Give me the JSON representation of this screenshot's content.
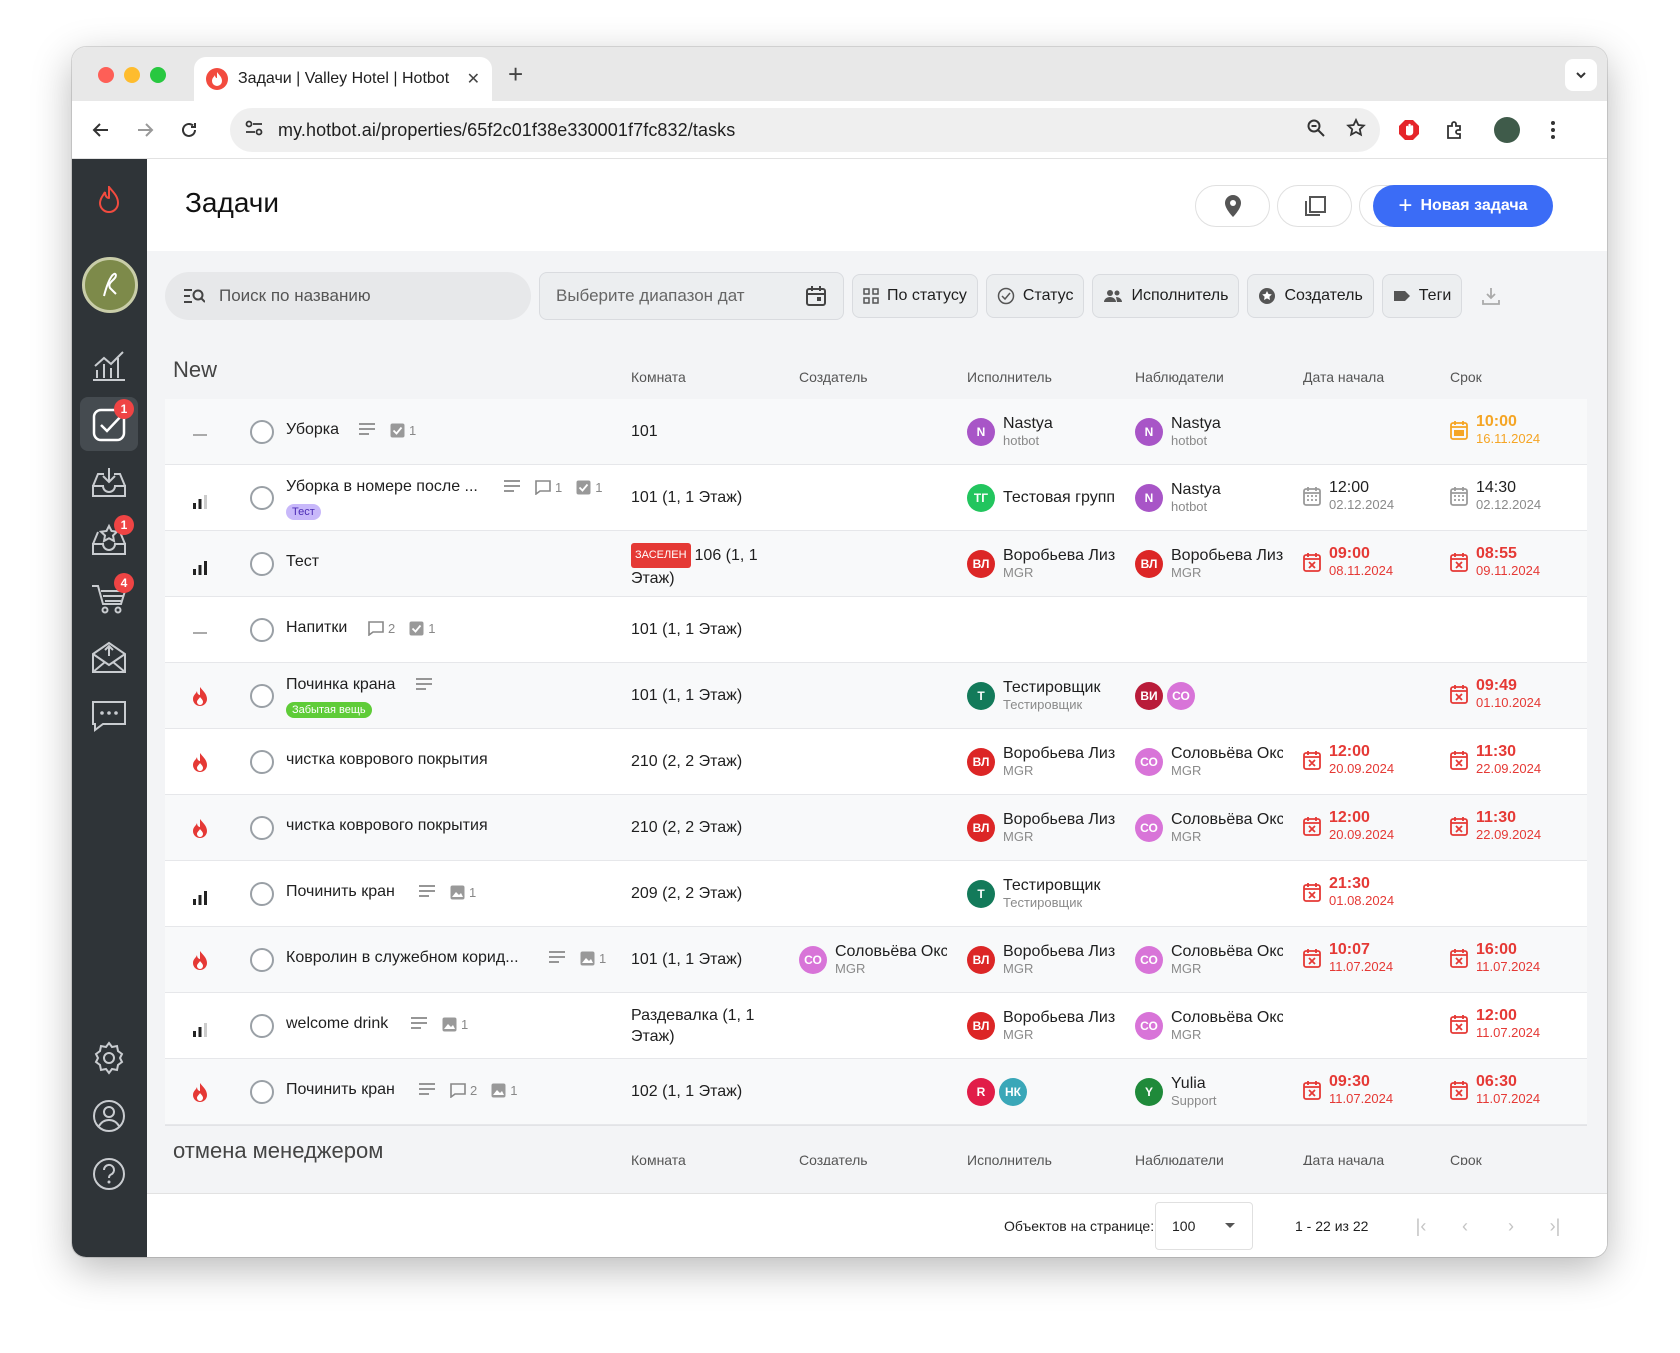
{
  "browser": {
    "tab_title": "Задачи | Valley Hotel | Hotbot",
    "url": "my.hotbot.ai/properties/65f2c01f38e330001f7fc832/tasks"
  },
  "sidebar": {
    "badges": {
      "tasks": "1",
      "reviews": "1",
      "shop": "4"
    }
  },
  "header": {
    "title": "Задачи",
    "new_task_label": "Новая задача"
  },
  "filters": {
    "search_placeholder": "Поиск по названию",
    "date_placeholder": "Выберите диапазон дат",
    "by_status": "По статусу",
    "status": "Статус",
    "assignee": "Исполнитель",
    "creator": "Создатель",
    "tags": "Теги"
  },
  "columns": {
    "room": "Комната",
    "creator": "Создатель",
    "assignee": "Исполнитель",
    "watchers": "Наблюдатели",
    "start_date": "Дата начала",
    "deadline": "Срок"
  },
  "groups": [
    {
      "title": "New"
    },
    {
      "title": "отмена менеджером"
    }
  ],
  "tasks": [
    {
      "priority": "none",
      "name": "Уборка",
      "checks": "1",
      "room": "101",
      "assignee": {
        "initials": "N",
        "name": "Nastya",
        "role": "hotbot",
        "color": "#a855c7"
      },
      "watcher": {
        "initials": "N",
        "name": "Nastya",
        "role": "hotbot",
        "color": "#a855c7"
      },
      "deadline": {
        "time": "10:00",
        "date": "16.11.2024",
        "state": "orange"
      }
    },
    {
      "priority": "medium",
      "name": "Уборка в номере после ...",
      "tag": "Тест",
      "comments": "1",
      "checks": "1",
      "room": "101 (1, 1 Этаж)",
      "assignee": {
        "initials": "ТГ",
        "name": "Тестовая группа",
        "role": "",
        "color": "#22c55e"
      },
      "watcher": {
        "initials": "N",
        "name": "Nastya",
        "role": "hotbot",
        "color": "#a855c7"
      },
      "start": {
        "time": "12:00",
        "date": "02.12.2024",
        "state": "gray"
      },
      "deadline": {
        "time": "14:30",
        "date": "02.12.2024",
        "state": "gray"
      }
    },
    {
      "priority": "high",
      "name": "Тест",
      "room_badge": "ЗАСЕЛЕН",
      "room": "106 (1, 1 Этаж)",
      "assignee": {
        "initials": "ВЛ",
        "name": "Воробьева Лиза",
        "role": "MGR",
        "color": "#dc2626"
      },
      "watcher": {
        "initials": "ВЛ",
        "name": "Воробьева Лиза",
        "role": "MGR",
        "color": "#dc2626"
      },
      "start": {
        "time": "09:00",
        "date": "08.11.2024",
        "state": "red"
      },
      "deadline": {
        "time": "08:55",
        "date": "09.11.2024",
        "state": "red"
      }
    },
    {
      "priority": "none",
      "name": "Напитки",
      "comments": "2",
      "checks": "1",
      "room": "101 (1, 1 Этаж)"
    },
    {
      "priority": "urgent",
      "name": "Починка крана",
      "tag": "Забытая вещь",
      "room": "101 (1, 1 Этаж)",
      "assignee": {
        "initials": "Т",
        "name": "Тестировщик",
        "role": "Тестировщик",
        "color": "#137a5a"
      },
      "watchers_avatars": [
        {
          "initials": "ВИ",
          "color": "#b91c3a"
        },
        {
          "initials": "СО",
          "color": "#d874d8"
        }
      ],
      "deadline": {
        "time": "09:49",
        "date": "01.10.2024",
        "state": "red"
      }
    },
    {
      "priority": "urgent",
      "name": "чистка коврового покрытия",
      "room": "210 (2, 2 Этаж)",
      "assignee": {
        "initials": "ВЛ",
        "name": "Воробьева Лиза",
        "role": "MGR",
        "color": "#dc2626"
      },
      "watcher": {
        "initials": "СО",
        "name": "Соловьёва Оксана",
        "role": "MGR",
        "color": "#d874d8"
      },
      "start": {
        "time": "12:00",
        "date": "20.09.2024",
        "state": "red"
      },
      "deadline": {
        "time": "11:30",
        "date": "22.09.2024",
        "state": "red"
      }
    },
    {
      "priority": "urgent",
      "name": "чистка коврового покрытия",
      "room": "210 (2, 2 Этаж)",
      "assignee": {
        "initials": "ВЛ",
        "name": "Воробьева Лиза",
        "role": "MGR",
        "color": "#dc2626"
      },
      "watcher": {
        "initials": "СО",
        "name": "Соловьёва Оксана",
        "role": "MGR",
        "color": "#d874d8"
      },
      "start": {
        "time": "12:00",
        "date": "20.09.2024",
        "state": "red"
      },
      "deadline": {
        "time": "11:30",
        "date": "22.09.2024",
        "state": "red"
      }
    },
    {
      "priority": "high",
      "name": "Починить кран",
      "images": "1",
      "room": "209 (2, 2 Этаж)",
      "assignee": {
        "initials": "Т",
        "name": "Тестировщик",
        "role": "Тестировщик",
        "color": "#137a5a"
      },
      "start": {
        "time": "21:30",
        "date": "01.08.2024",
        "state": "red"
      }
    },
    {
      "priority": "urgent",
      "name": "Ковролин в служебном корид...",
      "images": "1",
      "room": "101 (1, 1 Этаж)",
      "creator": {
        "initials": "СО",
        "name": "Соловьёва Оксана",
        "role": "MGR",
        "color": "#d874d8"
      },
      "assignee": {
        "initials": "ВЛ",
        "name": "Воробьева Лиза",
        "role": "MGR",
        "color": "#dc2626"
      },
      "watcher": {
        "initials": "СО",
        "name": "Соловьёва Оксана",
        "role": "MGR",
        "color": "#d874d8"
      },
      "start": {
        "time": "10:07",
        "date": "11.07.2024",
        "state": "red"
      },
      "deadline": {
        "time": "16:00",
        "date": "11.07.2024",
        "state": "red"
      }
    },
    {
      "priority": "medium",
      "name": "welcome drink",
      "images": "1",
      "room": "Раздевалка (1, 1 Этаж)",
      "assignee": {
        "initials": "ВЛ",
        "name": "Воробьева Лиза",
        "role": "MGR",
        "color": "#dc2626"
      },
      "watcher": {
        "initials": "СО",
        "name": "Соловьёва Оксана",
        "role": "MGR",
        "color": "#d874d8"
      },
      "deadline": {
        "time": "12:00",
        "date": "11.07.2024",
        "state": "red"
      }
    },
    {
      "priority": "urgent",
      "name": "Починить кран",
      "images": "1",
      "comments": "2",
      "room": "102 (1, 1 Этаж)",
      "assignees_avatars": [
        {
          "initials": "R",
          "color": "#e11d48"
        },
        {
          "initials": "НК",
          "color": "#3aa7b8"
        }
      ],
      "watcher": {
        "initials": "Y",
        "name": "Yulia",
        "role": "Support",
        "color": "#1f8a3a"
      },
      "start": {
        "time": "09:30",
        "date": "11.07.2024",
        "state": "red"
      },
      "deadline": {
        "time": "06:30",
        "date": "11.07.2024",
        "state": "red"
      }
    }
  ],
  "footer": {
    "per_page_label": "Объектов на странице:",
    "per_page_value": "100",
    "range": "1 - 22 из 22"
  },
  "colors": {
    "accent": "#3b6cf6",
    "overdue": "#e53935",
    "due_soon": "#f5a524",
    "sidebar": "#2f3438"
  }
}
